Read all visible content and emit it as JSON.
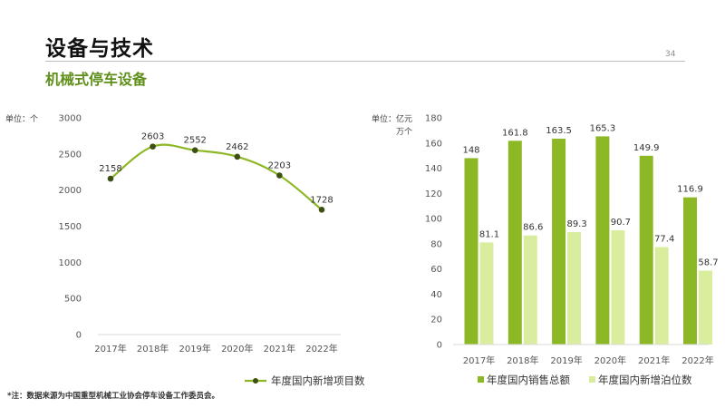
{
  "header": {
    "title": "设备与技术",
    "page_number": "34",
    "subtitle": "机械式停车设备"
  },
  "footnote": "*注：数据来源为中国重型机械工业协会停车设备工作委员会。",
  "colors": {
    "accent": "#5f8f1a",
    "line": "#8db825",
    "marker": "#3d4f12",
    "bar_dark": "#8db825",
    "bar_light": "#d9ed9f"
  },
  "chart_data": [
    {
      "type": "line",
      "unit_label": "单位：个",
      "categories": [
        "2017年",
        "2018年",
        "2019年",
        "2020年",
        "2021年",
        "2022年"
      ],
      "series": [
        {
          "name": "年度国内新增项目数",
          "values": [
            2158,
            2603,
            2552,
            2462,
            2203,
            1728
          ]
        }
      ],
      "yticks": [
        "3000",
        "2500",
        "2000",
        "1500",
        "1000",
        "500",
        "0"
      ],
      "ylim": [
        0,
        3000
      ],
      "grid": false,
      "legend": "bottom"
    },
    {
      "type": "bar",
      "unit_label": [
        "单位：亿元",
        "万个"
      ],
      "categories": [
        "2017年",
        "2018年",
        "2019年",
        "2020年",
        "2021年",
        "2022年"
      ],
      "series": [
        {
          "name": "年度国内销售总额",
          "values": [
            148,
            161.8,
            163.5,
            165.3,
            149.9,
            116.9
          ]
        },
        {
          "name": "年度国内新增泊位数",
          "values": [
            81.1,
            86.6,
            89.3,
            90.7,
            77.4,
            58.7
          ]
        }
      ],
      "yticks": [
        "180",
        "160",
        "140",
        "120",
        "100",
        "80",
        "60",
        "40",
        "20",
        "0"
      ],
      "ylim": [
        0,
        180
      ],
      "grid": false,
      "legend": "bottom"
    }
  ]
}
